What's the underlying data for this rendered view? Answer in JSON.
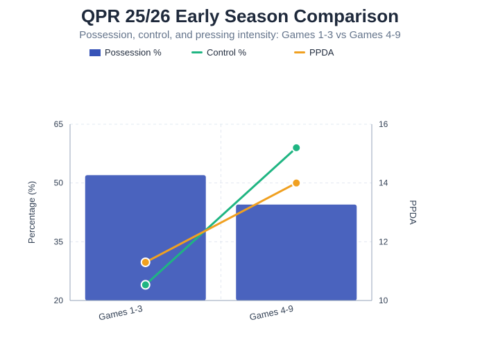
{
  "title": "QPR 25/26 Early Season Comparison",
  "subtitle": "Possession, control, and pressing intensity: Games 1-3 vs Games 4-9",
  "legend": {
    "possession": "Possession %",
    "control": "Control %",
    "ppda": "PPDA"
  },
  "colors": {
    "bar": "#4a63be",
    "control": "#1fb582",
    "ppda": "#f0a020",
    "grid": "#e2e8f0"
  },
  "chart_data": {
    "type": "bar",
    "title": "QPR 25/26 Early Season Comparison",
    "subtitle": "Possession, control, and pressing intensity: Games 1-3 vs Games 4-9",
    "categories": [
      "Games 1-3",
      "Games 4-9"
    ],
    "ylabel": "Percentage (%)",
    "y2label": "PPDA",
    "ylim": [
      20,
      65
    ],
    "y2lim": [
      10,
      16
    ],
    "yticks": [
      20,
      35,
      50,
      65
    ],
    "y2ticks": [
      10,
      12,
      14,
      16
    ],
    "series": [
      {
        "name": "Possession %",
        "type": "bar",
        "axis": "left",
        "values": [
          52.0,
          44.5
        ]
      },
      {
        "name": "Control %",
        "type": "line",
        "axis": "left",
        "values": [
          24.0,
          59.0
        ]
      },
      {
        "name": "PPDA",
        "type": "line",
        "axis": "right",
        "values": [
          11.3,
          14.0
        ]
      }
    ],
    "legend_position": "top",
    "grid": true
  }
}
